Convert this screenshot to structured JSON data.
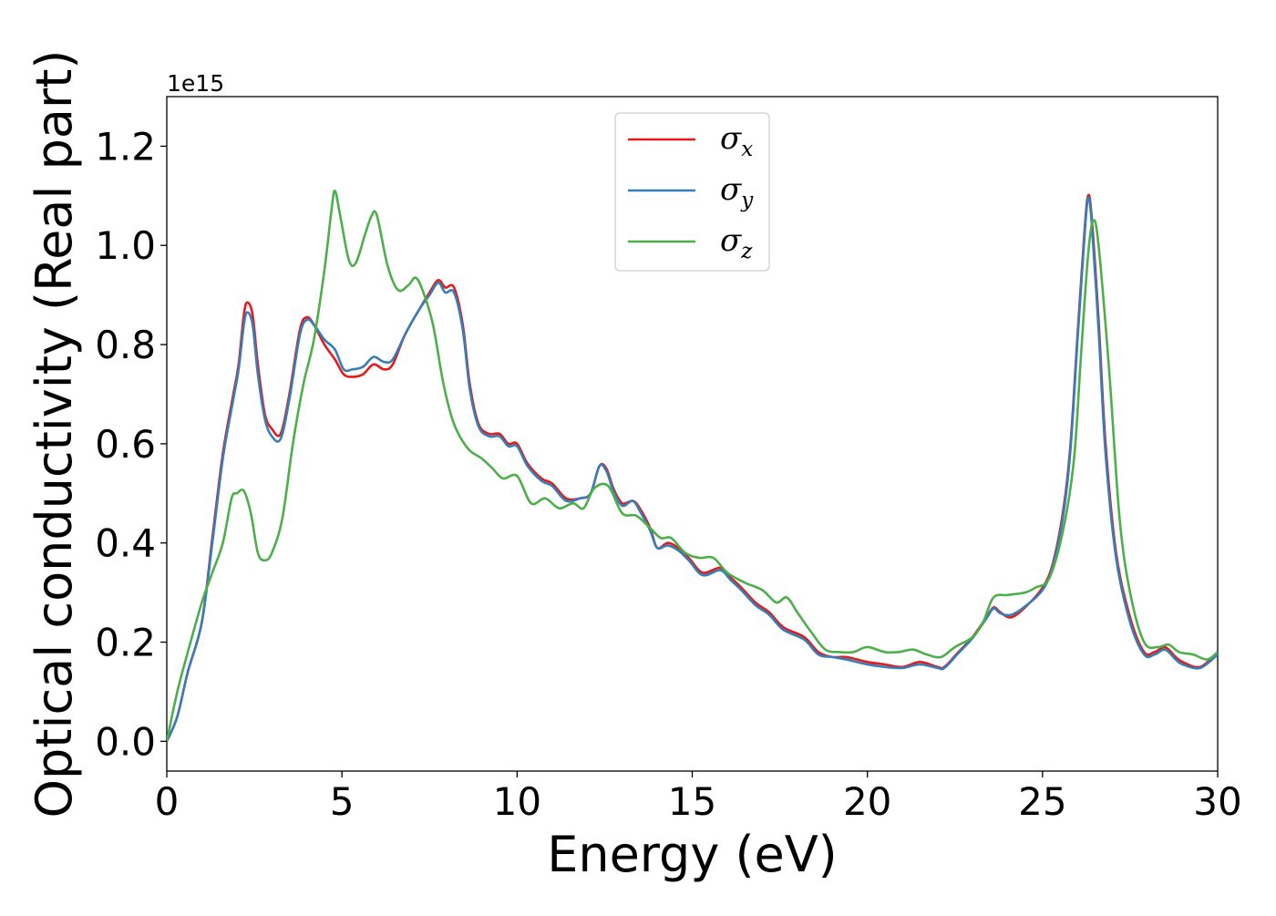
{
  "chart_data": {
    "type": "line",
    "xlabel": "Energy (eV)",
    "ylabel": "Optical conductivity (Real part)",
    "y_offset_label": "1e15",
    "xlim": [
      0,
      30
    ],
    "ylim": [
      -0.06,
      1.3
    ],
    "x_ticks": [
      0,
      5,
      10,
      15,
      20,
      25,
      30
    ],
    "x_tick_labels": [
      "0",
      "5",
      "10",
      "15",
      "20",
      "25",
      "30"
    ],
    "y_ticks": [
      0.0,
      0.2,
      0.4,
      0.6,
      0.8,
      1.0,
      1.2
    ],
    "y_tick_labels": [
      "0.0",
      "0.2",
      "0.4",
      "0.6",
      "0.8",
      "1.0",
      "1.2"
    ],
    "grid": false,
    "legend_position": "upper-center",
    "series": [
      {
        "name": "σx",
        "symbol": "σ",
        "subscript": "x",
        "color": "#e41a1c",
        "points": [
          [
            0,
            0
          ],
          [
            0.3,
            0.05
          ],
          [
            0.6,
            0.14
          ],
          [
            1.0,
            0.24
          ],
          [
            1.3,
            0.41
          ],
          [
            1.6,
            0.58
          ],
          [
            1.9,
            0.7
          ],
          [
            2.05,
            0.76
          ],
          [
            2.2,
            0.86
          ],
          [
            2.3,
            0.885
          ],
          [
            2.45,
            0.86
          ],
          [
            2.6,
            0.76
          ],
          [
            2.8,
            0.66
          ],
          [
            3.0,
            0.63
          ],
          [
            3.25,
            0.62
          ],
          [
            3.5,
            0.7
          ],
          [
            3.8,
            0.83
          ],
          [
            4.0,
            0.855
          ],
          [
            4.2,
            0.84
          ],
          [
            4.5,
            0.8
          ],
          [
            4.8,
            0.77
          ],
          [
            5.05,
            0.74
          ],
          [
            5.3,
            0.735
          ],
          [
            5.6,
            0.74
          ],
          [
            5.9,
            0.76
          ],
          [
            6.2,
            0.75
          ],
          [
            6.45,
            0.76
          ],
          [
            6.8,
            0.82
          ],
          [
            7.2,
            0.87
          ],
          [
            7.5,
            0.905
          ],
          [
            7.75,
            0.93
          ],
          [
            7.95,
            0.915
          ],
          [
            8.2,
            0.915
          ],
          [
            8.45,
            0.84
          ],
          [
            8.65,
            0.72
          ],
          [
            8.9,
            0.64
          ],
          [
            9.2,
            0.62
          ],
          [
            9.5,
            0.62
          ],
          [
            9.75,
            0.6
          ],
          [
            10.0,
            0.6
          ],
          [
            10.3,
            0.56
          ],
          [
            10.7,
            0.53
          ],
          [
            11.0,
            0.52
          ],
          [
            11.4,
            0.49
          ],
          [
            11.8,
            0.49
          ],
          [
            12.1,
            0.5
          ],
          [
            12.35,
            0.555
          ],
          [
            12.55,
            0.55
          ],
          [
            12.75,
            0.51
          ],
          [
            13.0,
            0.48
          ],
          [
            13.3,
            0.485
          ],
          [
            13.5,
            0.47
          ],
          [
            13.8,
            0.43
          ],
          [
            14.0,
            0.39
          ],
          [
            14.3,
            0.4
          ],
          [
            14.6,
            0.39
          ],
          [
            14.9,
            0.37
          ],
          [
            15.3,
            0.34
          ],
          [
            15.8,
            0.35
          ],
          [
            16.1,
            0.33
          ],
          [
            16.4,
            0.31
          ],
          [
            16.8,
            0.28
          ],
          [
            17.2,
            0.26
          ],
          [
            17.6,
            0.23
          ],
          [
            18.2,
            0.21
          ],
          [
            18.6,
            0.18
          ],
          [
            19.0,
            0.17
          ],
          [
            19.4,
            0.17
          ],
          [
            20.0,
            0.16
          ],
          [
            20.5,
            0.155
          ],
          [
            21.0,
            0.15
          ],
          [
            21.5,
            0.16
          ],
          [
            22.0,
            0.15
          ],
          [
            22.2,
            0.15
          ],
          [
            22.6,
            0.18
          ],
          [
            23.0,
            0.21
          ],
          [
            23.4,
            0.25
          ],
          [
            23.6,
            0.27
          ],
          [
            23.8,
            0.26
          ],
          [
            24.1,
            0.25
          ],
          [
            24.5,
            0.27
          ],
          [
            25.0,
            0.31
          ],
          [
            25.3,
            0.36
          ],
          [
            25.6,
            0.47
          ],
          [
            25.8,
            0.6
          ],
          [
            26.0,
            0.82
          ],
          [
            26.2,
            1.03
          ],
          [
            26.3,
            1.1
          ],
          [
            26.4,
            1.06
          ],
          [
            26.6,
            0.85
          ],
          [
            26.8,
            0.6
          ],
          [
            27.1,
            0.38
          ],
          [
            27.5,
            0.25
          ],
          [
            27.9,
            0.18
          ],
          [
            28.2,
            0.18
          ],
          [
            28.5,
            0.19
          ],
          [
            28.8,
            0.17
          ],
          [
            29.0,
            0.16
          ],
          [
            29.5,
            0.15
          ],
          [
            30.0,
            0.18
          ]
        ]
      },
      {
        "name": "σy",
        "symbol": "σ",
        "subscript": "y",
        "color": "#377eb8",
        "points": [
          [
            0,
            0
          ],
          [
            0.3,
            0.05
          ],
          [
            0.6,
            0.14
          ],
          [
            1.0,
            0.24
          ],
          [
            1.3,
            0.4
          ],
          [
            1.6,
            0.57
          ],
          [
            1.9,
            0.69
          ],
          [
            2.05,
            0.75
          ],
          [
            2.2,
            0.84
          ],
          [
            2.3,
            0.865
          ],
          [
            2.45,
            0.84
          ],
          [
            2.6,
            0.74
          ],
          [
            2.8,
            0.65
          ],
          [
            3.0,
            0.615
          ],
          [
            3.25,
            0.61
          ],
          [
            3.5,
            0.69
          ],
          [
            3.8,
            0.82
          ],
          [
            4.0,
            0.85
          ],
          [
            4.2,
            0.84
          ],
          [
            4.5,
            0.81
          ],
          [
            4.8,
            0.79
          ],
          [
            5.05,
            0.75
          ],
          [
            5.3,
            0.75
          ],
          [
            5.6,
            0.755
          ],
          [
            5.9,
            0.775
          ],
          [
            6.2,
            0.765
          ],
          [
            6.45,
            0.77
          ],
          [
            6.8,
            0.82
          ],
          [
            7.2,
            0.87
          ],
          [
            7.5,
            0.9
          ],
          [
            7.75,
            0.925
          ],
          [
            7.95,
            0.905
          ],
          [
            8.2,
            0.905
          ],
          [
            8.45,
            0.83
          ],
          [
            8.65,
            0.71
          ],
          [
            8.9,
            0.635
          ],
          [
            9.2,
            0.615
          ],
          [
            9.5,
            0.615
          ],
          [
            9.75,
            0.595
          ],
          [
            10.0,
            0.595
          ],
          [
            10.3,
            0.555
          ],
          [
            10.7,
            0.525
          ],
          [
            11.0,
            0.515
          ],
          [
            11.4,
            0.485
          ],
          [
            11.8,
            0.49
          ],
          [
            12.1,
            0.5
          ],
          [
            12.35,
            0.555
          ],
          [
            12.55,
            0.545
          ],
          [
            12.75,
            0.505
          ],
          [
            13.0,
            0.475
          ],
          [
            13.3,
            0.485
          ],
          [
            13.5,
            0.465
          ],
          [
            13.8,
            0.425
          ],
          [
            14.0,
            0.39
          ],
          [
            14.3,
            0.395
          ],
          [
            14.6,
            0.385
          ],
          [
            14.9,
            0.365
          ],
          [
            15.3,
            0.335
          ],
          [
            15.8,
            0.345
          ],
          [
            16.1,
            0.325
          ],
          [
            16.4,
            0.305
          ],
          [
            16.8,
            0.275
          ],
          [
            17.2,
            0.255
          ],
          [
            17.6,
            0.225
          ],
          [
            18.2,
            0.205
          ],
          [
            18.6,
            0.175
          ],
          [
            19.0,
            0.17
          ],
          [
            19.4,
            0.165
          ],
          [
            20.0,
            0.155
          ],
          [
            20.5,
            0.15
          ],
          [
            21.0,
            0.148
          ],
          [
            21.5,
            0.155
          ],
          [
            22.0,
            0.148
          ],
          [
            22.2,
            0.148
          ],
          [
            22.6,
            0.178
          ],
          [
            23.0,
            0.208
          ],
          [
            23.4,
            0.248
          ],
          [
            23.6,
            0.268
          ],
          [
            23.8,
            0.258
          ],
          [
            24.1,
            0.255
          ],
          [
            24.5,
            0.272
          ],
          [
            25.0,
            0.305
          ],
          [
            25.3,
            0.355
          ],
          [
            25.6,
            0.46
          ],
          [
            25.8,
            0.59
          ],
          [
            26.0,
            0.81
          ],
          [
            26.2,
            1.02
          ],
          [
            26.3,
            1.095
          ],
          [
            26.4,
            1.05
          ],
          [
            26.6,
            0.83
          ],
          [
            26.8,
            0.58
          ],
          [
            27.1,
            0.37
          ],
          [
            27.5,
            0.24
          ],
          [
            27.9,
            0.175
          ],
          [
            28.2,
            0.175
          ],
          [
            28.5,
            0.185
          ],
          [
            28.8,
            0.165
          ],
          [
            29.0,
            0.155
          ],
          [
            29.5,
            0.148
          ],
          [
            30.0,
            0.175
          ]
        ]
      },
      {
        "name": "σz",
        "symbol": "σ",
        "subscript": "z",
        "color": "#4daf4a",
        "points": [
          [
            0,
            0
          ],
          [
            0.3,
            0.1
          ],
          [
            0.6,
            0.18
          ],
          [
            1.0,
            0.28
          ],
          [
            1.3,
            0.34
          ],
          [
            1.6,
            0.4
          ],
          [
            1.85,
            0.49
          ],
          [
            2.0,
            0.5
          ],
          [
            2.2,
            0.505
          ],
          [
            2.4,
            0.46
          ],
          [
            2.6,
            0.38
          ],
          [
            2.8,
            0.365
          ],
          [
            3.0,
            0.38
          ],
          [
            3.3,
            0.45
          ],
          [
            3.6,
            0.6
          ],
          [
            3.9,
            0.72
          ],
          [
            4.2,
            0.81
          ],
          [
            4.5,
            0.95
          ],
          [
            4.7,
            1.07
          ],
          [
            4.8,
            1.11
          ],
          [
            4.95,
            1.06
          ],
          [
            5.2,
            0.97
          ],
          [
            5.4,
            0.965
          ],
          [
            5.65,
            1.02
          ],
          [
            5.85,
            1.06
          ],
          [
            6.0,
            1.06
          ],
          [
            6.3,
            0.96
          ],
          [
            6.6,
            0.91
          ],
          [
            6.9,
            0.92
          ],
          [
            7.1,
            0.935
          ],
          [
            7.3,
            0.91
          ],
          [
            7.6,
            0.84
          ],
          [
            7.9,
            0.72
          ],
          [
            8.2,
            0.64
          ],
          [
            8.6,
            0.59
          ],
          [
            9.0,
            0.57
          ],
          [
            9.3,
            0.55
          ],
          [
            9.6,
            0.53
          ],
          [
            10.0,
            0.535
          ],
          [
            10.4,
            0.48
          ],
          [
            10.8,
            0.49
          ],
          [
            11.2,
            0.47
          ],
          [
            11.6,
            0.48
          ],
          [
            11.9,
            0.47
          ],
          [
            12.2,
            0.51
          ],
          [
            12.6,
            0.515
          ],
          [
            13.0,
            0.46
          ],
          [
            13.4,
            0.455
          ],
          [
            13.8,
            0.43
          ],
          [
            14.1,
            0.41
          ],
          [
            14.4,
            0.41
          ],
          [
            14.8,
            0.38
          ],
          [
            15.2,
            0.37
          ],
          [
            15.6,
            0.37
          ],
          [
            16.0,
            0.34
          ],
          [
            16.5,
            0.32
          ],
          [
            17.0,
            0.305
          ],
          [
            17.4,
            0.28
          ],
          [
            17.7,
            0.29
          ],
          [
            18.0,
            0.26
          ],
          [
            18.4,
            0.22
          ],
          [
            18.8,
            0.185
          ],
          [
            19.2,
            0.18
          ],
          [
            19.6,
            0.18
          ],
          [
            20.0,
            0.19
          ],
          [
            20.5,
            0.18
          ],
          [
            20.9,
            0.18
          ],
          [
            21.3,
            0.185
          ],
          [
            21.7,
            0.175
          ],
          [
            22.1,
            0.17
          ],
          [
            22.5,
            0.19
          ],
          [
            23.0,
            0.21
          ],
          [
            23.3,
            0.24
          ],
          [
            23.6,
            0.29
          ],
          [
            24.0,
            0.295
          ],
          [
            24.5,
            0.3
          ],
          [
            24.8,
            0.31
          ],
          [
            25.2,
            0.33
          ],
          [
            25.6,
            0.43
          ],
          [
            25.9,
            0.57
          ],
          [
            26.1,
            0.78
          ],
          [
            26.3,
            0.98
          ],
          [
            26.45,
            1.05
          ],
          [
            26.6,
            1.0
          ],
          [
            26.9,
            0.75
          ],
          [
            27.2,
            0.45
          ],
          [
            27.5,
            0.3
          ],
          [
            27.9,
            0.2
          ],
          [
            28.3,
            0.19
          ],
          [
            28.6,
            0.195
          ],
          [
            28.9,
            0.18
          ],
          [
            29.3,
            0.175
          ],
          [
            29.7,
            0.165
          ],
          [
            30.0,
            0.18
          ]
        ]
      }
    ]
  }
}
